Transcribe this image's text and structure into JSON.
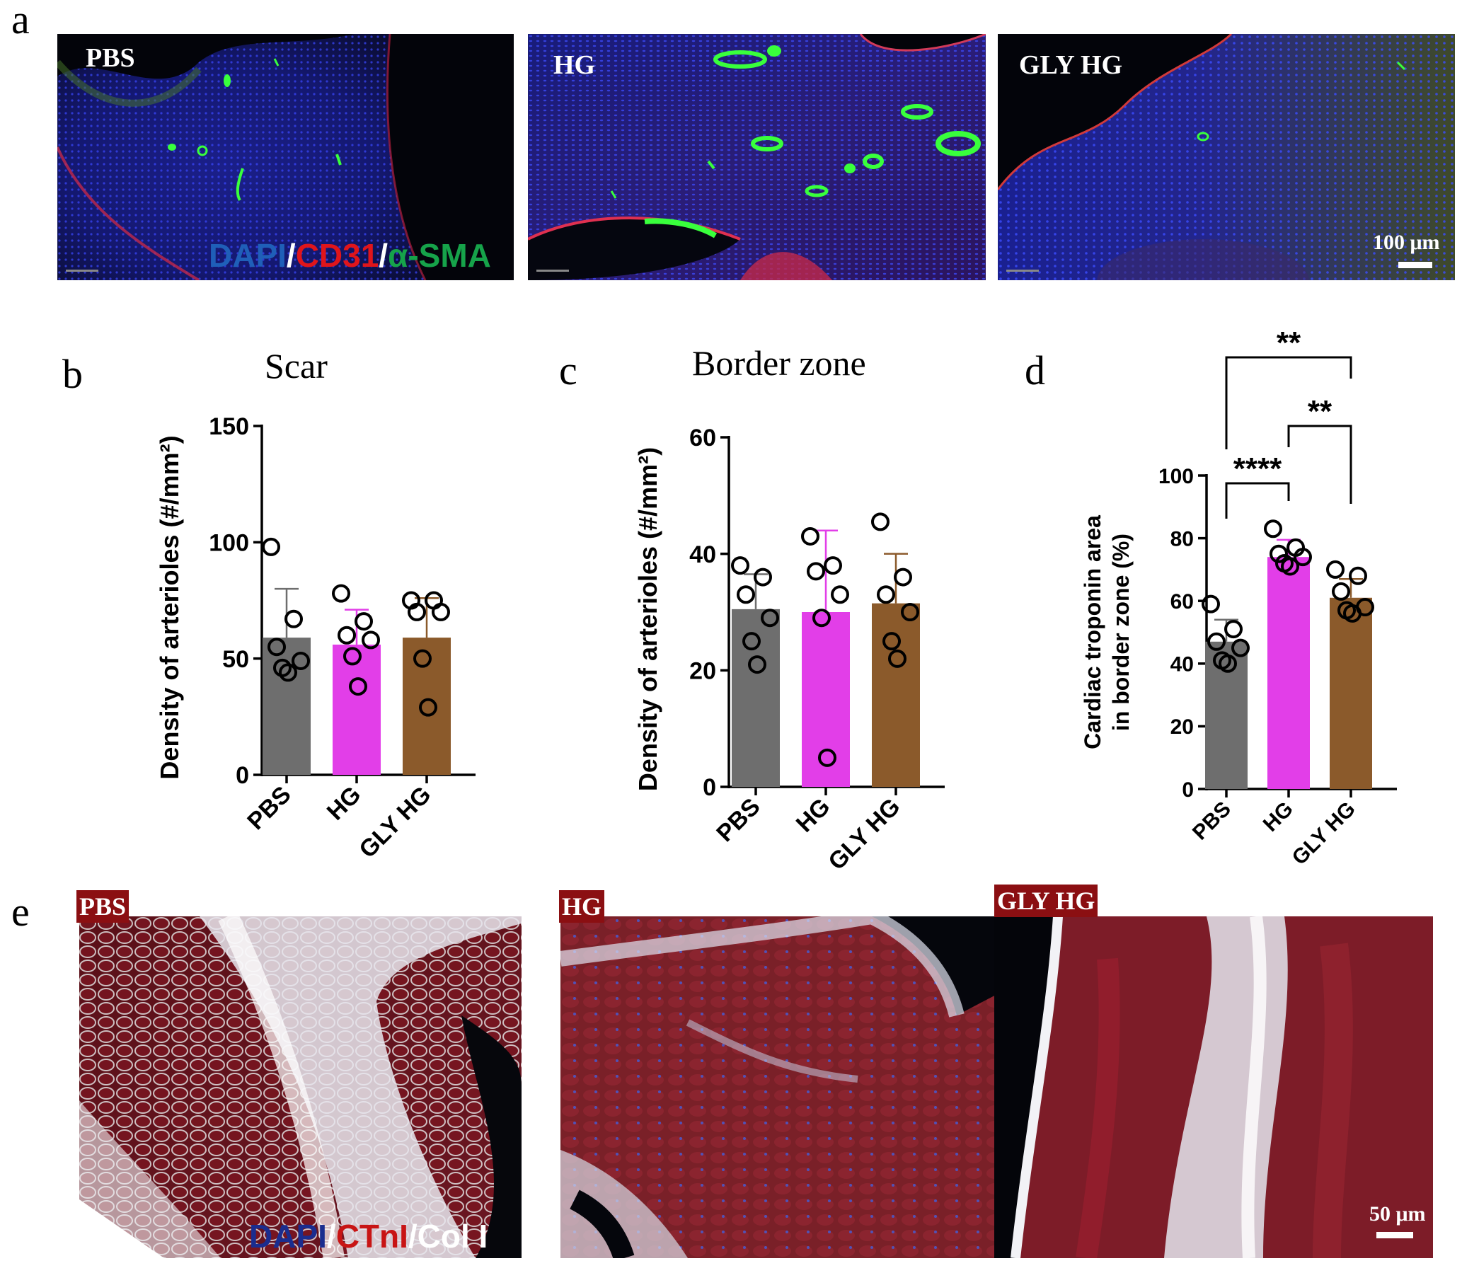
{
  "panels": {
    "a": {
      "letter": "a",
      "images": [
        {
          "label": "PBS"
        },
        {
          "label": "HG"
        },
        {
          "label": "GLY HG"
        }
      ],
      "stain": [
        {
          "text": "DAPI",
          "color": "#1f5fb8"
        },
        {
          "text": "/",
          "color": "#ffffff"
        },
        {
          "text": "CD31",
          "color": "#e0151b"
        },
        {
          "text": "/",
          "color": "#ffffff"
        },
        {
          "text": "α-SMA",
          "color": "#16a34a"
        }
      ],
      "scale_label": "100 μm"
    },
    "b": {
      "letter": "b"
    },
    "c": {
      "letter": "c"
    },
    "d": {
      "letter": "d"
    },
    "e": {
      "letter": "e",
      "images": [
        {
          "label": "PBS"
        },
        {
          "label": "HG"
        },
        {
          "label": "GLY HG"
        }
      ],
      "stain": [
        {
          "text": "DAPI",
          "color": "#1a2d8f"
        },
        {
          "text": "/",
          "color": "#ffffff"
        },
        {
          "text": "CTnI",
          "color": "#c81414"
        },
        {
          "text": "/",
          "color": "#ffffff"
        },
        {
          "text": "Col I",
          "color": "#ffffff"
        }
      ],
      "scale_label": "50 μm",
      "mini_scale": "50 μm"
    }
  },
  "colors": {
    "PBS": "#6e6e6e",
    "HG": "#e23ee8",
    "GLY HG": "#8b5a2b"
  },
  "chart_data": [
    {
      "id": "b",
      "type": "bar",
      "title": "Scar",
      "ylabel": "Density of arterioles (#/mm²)",
      "categories": [
        "PBS",
        "HG",
        "GLY HG"
      ],
      "ylim": [
        0,
        150
      ],
      "yticks": [
        0,
        50,
        100,
        150
      ],
      "values": [
        59,
        56,
        59
      ],
      "errors": [
        21,
        15,
        17
      ],
      "points": [
        [
          98,
          67,
          55,
          49,
          46,
          44
        ],
        [
          78,
          66,
          60,
          58,
          51,
          38
        ],
        [
          75,
          75,
          70,
          70,
          50,
          29
        ]
      ]
    },
    {
      "id": "c",
      "type": "bar",
      "title": "Border zone",
      "ylabel": "Density of arterioles (#/mm²)",
      "categories": [
        "PBS",
        "HG",
        "GLY HG"
      ],
      "ylim": [
        0,
        60
      ],
      "yticks": [
        0,
        20,
        40,
        60
      ],
      "values": [
        30.5,
        30,
        31.5
      ],
      "errors": [
        6,
        14,
        8.5
      ],
      "points": [
        [
          38,
          36,
          33,
          29,
          25,
          21
        ],
        [
          43,
          38,
          37,
          33,
          29,
          5
        ],
        [
          45.5,
          36,
          33,
          30,
          25,
          22
        ]
      ]
    },
    {
      "id": "d",
      "type": "bar",
      "title": "",
      "ylabel": "Cardiac troponin area in border zone (%)",
      "ylabel_lines": [
        "Cardiac troponin area",
        "in border zone (%)"
      ],
      "categories": [
        "PBS",
        "HG",
        "GLY HG"
      ],
      "ylim": [
        0,
        100
      ],
      "yticks": [
        0,
        20,
        40,
        60,
        80,
        100
      ],
      "values": [
        47,
        74,
        61
      ],
      "errors": [
        7,
        5.5,
        6
      ],
      "points": [
        [
          59,
          51,
          47,
          45,
          41,
          40
        ],
        [
          83,
          77,
          75,
          74,
          72,
          71
        ],
        [
          70,
          68,
          63,
          58,
          57,
          56
        ]
      ],
      "significance": [
        {
          "from": 0,
          "to": 2,
          "label": "**"
        },
        {
          "from": 1,
          "to": 2,
          "label": "**"
        },
        {
          "from": 0,
          "to": 1,
          "label": "****"
        }
      ]
    }
  ]
}
